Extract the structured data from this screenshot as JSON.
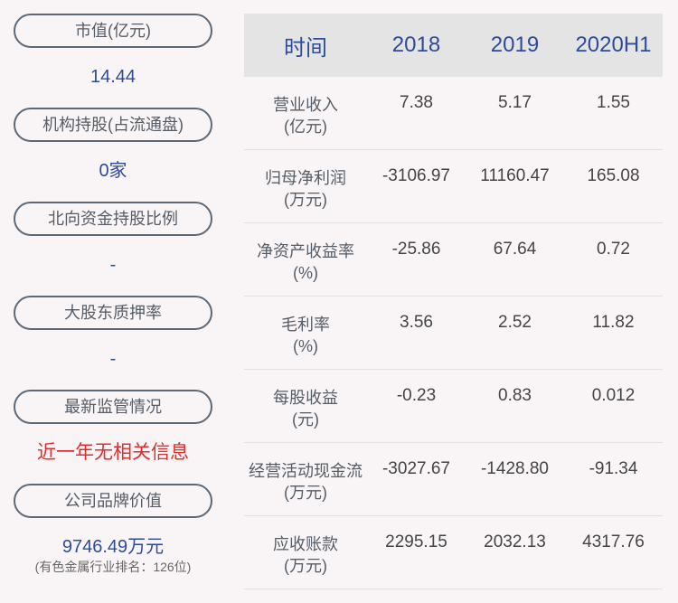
{
  "left": [
    {
      "label": "市值(亿元)",
      "value": "14.44"
    },
    {
      "label": "机构持股(占流通盘)",
      "value": "0家"
    },
    {
      "label": "北向资金持股比例",
      "value": "-"
    },
    {
      "label": "大股东质押率",
      "value": "-"
    },
    {
      "label": "最新监管情况",
      "value": "近一年无相关信息"
    },
    {
      "label": "公司品牌价值",
      "value": "9746.49万元",
      "note": "(有色金属行业排名：126位)"
    }
  ],
  "colors": {
    "accent": "#2d4b98",
    "alert": "#e02e2e",
    "header_bg": "#e4e4e4"
  },
  "table": {
    "headers": [
      "时间",
      "2018",
      "2019",
      "2020H1"
    ],
    "rows": [
      {
        "label": "营业收入",
        "unit": "(亿元)",
        "values": [
          "7.38",
          "5.17",
          "1.55"
        ]
      },
      {
        "label": "归母净利润",
        "unit": "(万元)",
        "values": [
          "-3106.97",
          "11160.47",
          "165.08"
        ]
      },
      {
        "label": "净资产收益率",
        "unit": "(%)",
        "values": [
          "-25.86",
          "67.64",
          "0.72"
        ]
      },
      {
        "label": "毛利率",
        "unit": "(%)",
        "values": [
          "3.56",
          "2.52",
          "11.82"
        ]
      },
      {
        "label": "每股收益",
        "unit": "(元)",
        "values": [
          "-0.23",
          "0.83",
          "0.012"
        ]
      },
      {
        "label": "经营活动现金流",
        "unit": "(万元)",
        "values": [
          "-3027.67",
          "-1428.80",
          "-91.34"
        ]
      },
      {
        "label": "应收账款",
        "unit": "(万元)",
        "values": [
          "2295.15",
          "2032.13",
          "4317.76"
        ]
      }
    ]
  }
}
